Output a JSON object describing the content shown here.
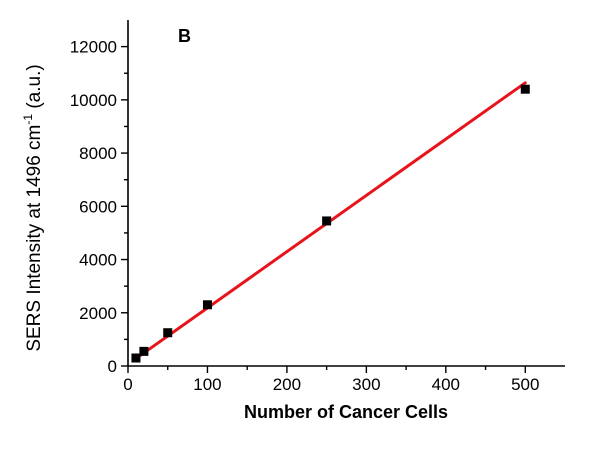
{
  "chart_data": {
    "type": "scatter",
    "panel_label": "B",
    "xlabel": "Number of Cancer Cells",
    "ylabel": {
      "prefix": "SERS Intensity at 1496 cm",
      "superscript": "-1",
      "suffix": " (a.u.)"
    },
    "xlim": [
      0,
      550
    ],
    "ylim": [
      0,
      13000
    ],
    "x_ticks": [
      0,
      100,
      200,
      300,
      400,
      500
    ],
    "x_ticks_minor": [
      50,
      150,
      250,
      350,
      450
    ],
    "y_ticks": [
      0,
      2000,
      4000,
      6000,
      8000,
      10000,
      12000
    ],
    "y_ticks_minor": [
      1000,
      3000,
      5000,
      7000,
      9000,
      11000
    ],
    "grid": false,
    "series": [
      {
        "marker": "square",
        "color": "#000000",
        "points": [
          {
            "x": 10,
            "y": 300
          },
          {
            "x": 20,
            "y": 550
          },
          {
            "x": 50,
            "y": 1250
          },
          {
            "x": 100,
            "y": 2300
          },
          {
            "x": 250,
            "y": 5450
          },
          {
            "x": 500,
            "y": 10400
          }
        ]
      }
    ],
    "fit_line": {
      "color": "#e8141c",
      "x": [
        10,
        500
      ],
      "y": [
        280,
        10640
      ]
    }
  }
}
